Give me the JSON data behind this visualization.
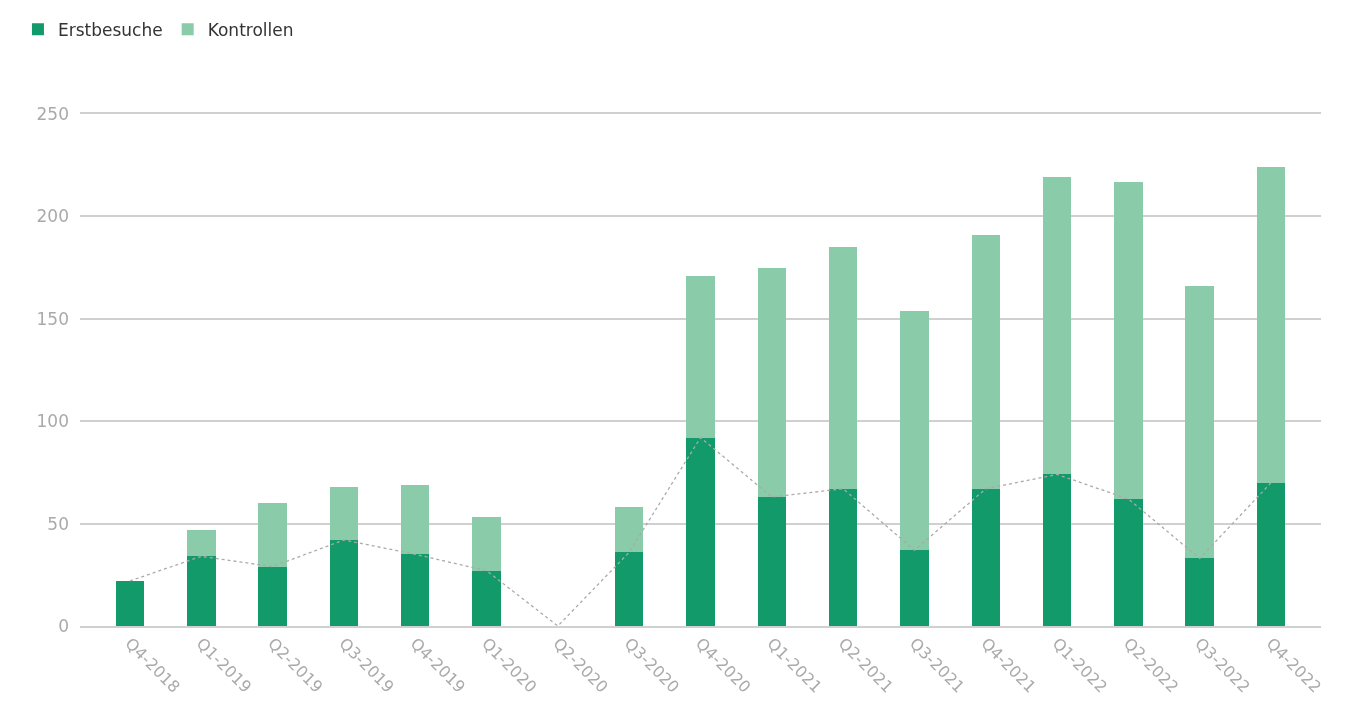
{
  "chart_data": {
    "type": "bar",
    "stacked": true,
    "categories": [
      "Q4-2018",
      "Q1-2019",
      "Q2-2019",
      "Q3-2019",
      "Q4-2019",
      "Q1-2020",
      "Q2-2020",
      "Q3-2020",
      "Q4-2020",
      "Q1-2021",
      "Q2-2021",
      "Q3-2021",
      "Q4-2021",
      "Q1-2022",
      "Q2-2022",
      "Q3-2022",
      "Q4-2022"
    ],
    "series": [
      {
        "name": "Erstbesuche",
        "color": "#129a6a",
        "values": [
          22,
          34,
          29,
          42,
          35,
          27,
          0,
          36,
          92,
          63,
          67,
          37,
          67,
          74,
          62,
          33,
          70
        ]
      },
      {
        "name": "Kontrollen",
        "color": "#8acbaa",
        "values": [
          0,
          13,
          31,
          26,
          34,
          26,
          0,
          22,
          79,
          112,
          118,
          117,
          124,
          145,
          155,
          133,
          154
        ]
      },
      {
        "type": "line",
        "color": "#aaaaaa",
        "line_style": "dotted",
        "marker": "none",
        "values": [
          22,
          34,
          29,
          42,
          35,
          27,
          0,
          36,
          92,
          63,
          67,
          37,
          67,
          74,
          62,
          33,
          70
        ]
      }
    ],
    "ylim": [
      0,
      250
    ],
    "yticks": [
      0,
      50,
      100,
      150,
      200,
      250
    ],
    "grid": "y",
    "legend": "top left"
  }
}
